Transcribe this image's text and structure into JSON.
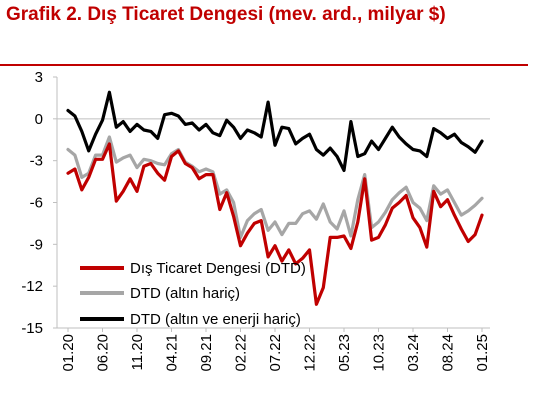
{
  "chart_data": {
    "type": "line",
    "title": "Grafik 2. Dış Ticaret Dengesi (mev. ard., milyar $)",
    "xlabel": "",
    "ylabel": "",
    "ylim": [
      -15,
      3
    ],
    "yticks": [
      3,
      0,
      -3,
      -6,
      -9,
      -12,
      -15
    ],
    "x_tick_labels": [
      "01.20",
      "06.20",
      "11.20",
      "04.21",
      "09.21",
      "02.22",
      "07.22",
      "12.22",
      "05.23",
      "10.23",
      "03.24",
      "08.24",
      "01.25"
    ],
    "x_tick_index": [
      0,
      5,
      10,
      15,
      20,
      25,
      30,
      35,
      40,
      45,
      50,
      55,
      60
    ],
    "legend_position": "bottom-left",
    "series": [
      {
        "name": "Dış Ticaret Dengesi (DTD)",
        "color": "#c00000",
        "values": [
          -3.9,
          -3.6,
          -5.1,
          -4.2,
          -2.9,
          -2.9,
          -1.8,
          -5.9,
          -5.2,
          -4.3,
          -5.2,
          -3.4,
          -3.2,
          -3.9,
          -4.4,
          -2.7,
          -2.3,
          -3.2,
          -3.5,
          -4.3,
          -4.0,
          -4.0,
          -6.5,
          -5.3,
          -7.0,
          -9.1,
          -8.2,
          -7.5,
          -7.3,
          -9.9,
          -9.1,
          -10.2,
          -9.4,
          -10.4,
          -10.0,
          -9.4,
          -13.3,
          -12.1,
          -8.5,
          -8.5,
          -8.4,
          -9.3,
          -7.4,
          -4.3,
          -8.7,
          -8.5,
          -7.6,
          -6.4,
          -6.0,
          -5.5,
          -7.1,
          -7.8,
          -9.2,
          -5.2,
          -6.3,
          -5.8,
          -6.9,
          -7.9,
          -8.8,
          -8.3,
          -6.9
        ]
      },
      {
        "name": "DTD (altın hariç)",
        "color": "#a6a6a6",
        "values": [
          -2.2,
          -2.6,
          -4.2,
          -3.9,
          -2.6,
          -2.6,
          -1.3,
          -3.1,
          -2.8,
          -2.6,
          -3.5,
          -2.9,
          -3.0,
          -3.2,
          -3.3,
          -2.5,
          -2.2,
          -3.1,
          -3.4,
          -3.8,
          -3.6,
          -3.8,
          -5.4,
          -5.1,
          -6.0,
          -8.5,
          -7.3,
          -6.8,
          -6.5,
          -8.0,
          -7.4,
          -8.3,
          -7.5,
          -7.5,
          -6.8,
          -6.6,
          -7.2,
          -6.1,
          -7.4,
          -7.9,
          -6.6,
          -8.4,
          -5.8,
          -4.0,
          -7.8,
          -7.4,
          -6.7,
          -5.8,
          -5.3,
          -4.9,
          -6.0,
          -6.4,
          -7.3,
          -4.8,
          -5.4,
          -5.1,
          -6.0,
          -6.9,
          -6.6,
          -6.2,
          -5.7
        ]
      },
      {
        "name": "DTD (altın ve enerji hariç)",
        "color": "#000000",
        "values": [
          0.6,
          0.2,
          -0.9,
          -2.3,
          -1.1,
          -0.1,
          1.9,
          -0.6,
          -0.2,
          -0.9,
          -0.4,
          -0.8,
          -0.9,
          -1.4,
          0.3,
          0.4,
          0.2,
          -0.4,
          -0.3,
          -0.8,
          -0.4,
          -1.0,
          -1.2,
          -0.1,
          -0.6,
          -1.4,
          -0.8,
          -1.0,
          -1.3,
          1.2,
          -1.9,
          -0.6,
          -0.7,
          -1.8,
          -1.4,
          -1.1,
          -2.2,
          -2.6,
          -2.1,
          -2.7,
          -3.7,
          -0.2,
          -2.7,
          -2.5,
          -1.6,
          -2.2,
          -1.4,
          -0.6,
          -1.3,
          -1.8,
          -2.2,
          -2.3,
          -2.7,
          -0.7,
          -1.0,
          -1.4,
          -1.1,
          -1.7,
          -2.0,
          -2.4,
          -1.6
        ]
      }
    ]
  }
}
